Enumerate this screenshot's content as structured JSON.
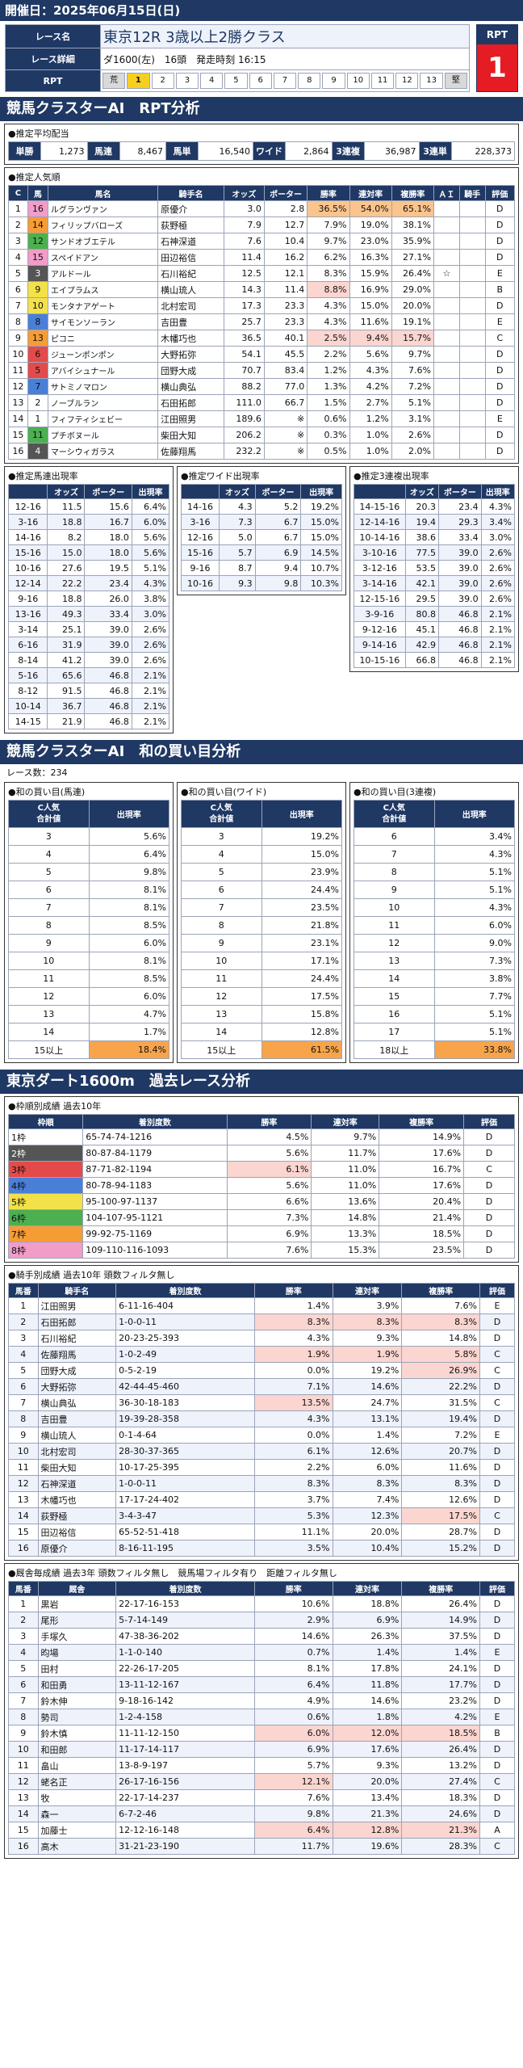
{
  "header": {
    "date_label": "開催日：2025年06月15日(日)",
    "race_label": "レース名",
    "race_name": "東京12R 3歳以上2勝クラス",
    "detail_label": "レース詳細",
    "detail_value": "ダ1600(左)　16頭　発走時刻 16:15",
    "rpt_label": "RPT",
    "rpt_head": "RPT",
    "rpt_value": "1",
    "rpt_scale": [
      "荒",
      "1",
      "2",
      "3",
      "4",
      "5",
      "6",
      "7",
      "8",
      "9",
      "10",
      "11",
      "12",
      "13",
      "堅"
    ]
  },
  "section1": {
    "title": "競馬クラスターAI　RPT分析",
    "payout_title": "●推定平均配当",
    "payouts": [
      [
        "単勝",
        "1,273"
      ],
      [
        "馬連",
        "8,467"
      ],
      [
        "馬単",
        "16,540"
      ],
      [
        "ワイド",
        "2,864"
      ],
      [
        "3連複",
        "36,987"
      ],
      [
        "3連単",
        "228,373"
      ]
    ],
    "popularity_title": "●推定人気順",
    "pop_headers": [
      "C",
      "馬",
      "馬名",
      "騎手名",
      "オッズ",
      "ポーター",
      "勝率",
      "連対率",
      "複勝率",
      "ＡＩ",
      "騎手",
      "評価"
    ],
    "pop_rows": [
      [
        "1",
        "16",
        "ルグランヴァン",
        "原優介",
        "3.0",
        "2.8",
        "36.5%",
        "54.0%",
        "65.1%",
        "",
        "",
        "D"
      ],
      [
        "2",
        "14",
        "フィリップバローズ",
        "荻野極",
        "7.9",
        "12.7",
        "7.9%",
        "19.0%",
        "38.1%",
        "",
        "",
        "D"
      ],
      [
        "3",
        "12",
        "サンドオブエテル",
        "石神深道",
        "7.6",
        "10.4",
        "9.7%",
        "23.0%",
        "35.9%",
        "",
        "",
        "D"
      ],
      [
        "4",
        "15",
        "スペイドアン",
        "田辺裕信",
        "11.4",
        "16.2",
        "6.2%",
        "16.3%",
        "27.1%",
        "",
        "",
        "D"
      ],
      [
        "5",
        "3",
        "アルドール",
        "石川裕紀",
        "12.5",
        "12.1",
        "8.3%",
        "15.9%",
        "26.4%",
        "☆",
        "",
        "E"
      ],
      [
        "6",
        "9",
        "エイプラムス",
        "横山琉人",
        "14.3",
        "11.4",
        "8.8%",
        "16.9%",
        "29.0%",
        "",
        "",
        "B"
      ],
      [
        "7",
        "10",
        "モンタナアゲート",
        "北村宏司",
        "17.3",
        "23.3",
        "4.3%",
        "15.0%",
        "20.0%",
        "",
        "",
        "D"
      ],
      [
        "8",
        "8",
        "サイモンソーラン",
        "吉田豊",
        "25.7",
        "23.3",
        "4.3%",
        "11.6%",
        "19.1%",
        "",
        "",
        "E"
      ],
      [
        "9",
        "13",
        "ピコニ",
        "木幡巧也",
        "36.5",
        "40.1",
        "2.5%",
        "9.4%",
        "15.7%",
        "",
        "",
        "C"
      ],
      [
        "10",
        "6",
        "ジューンポンポン",
        "大野拓弥",
        "54.1",
        "45.5",
        "2.2%",
        "5.6%",
        "9.7%",
        "",
        "",
        "D"
      ],
      [
        "11",
        "5",
        "アバイシュナール",
        "団野大成",
        "70.7",
        "83.4",
        "1.2%",
        "4.3%",
        "7.6%",
        "",
        "",
        "D"
      ],
      [
        "12",
        "7",
        "サトミノマロン",
        "横山典弘",
        "88.2",
        "77.0",
        "1.3%",
        "4.2%",
        "7.2%",
        "",
        "",
        "D"
      ],
      [
        "13",
        "2",
        "ノーブルラン",
        "石田拓郎",
        "111.0",
        "66.7",
        "1.5%",
        "2.7%",
        "5.1%",
        "",
        "",
        "D"
      ],
      [
        "14",
        "1",
        "フィフティシェビー",
        "江田照男",
        "189.6",
        "※",
        "0.6%",
        "1.2%",
        "3.1%",
        "",
        "",
        "E"
      ],
      [
        "15",
        "11",
        "プチボヌール",
        "柴田大知",
        "206.2",
        "※",
        "0.3%",
        "1.0%",
        "2.6%",
        "",
        "",
        "D"
      ],
      [
        "16",
        "4",
        "マーシウィガラス",
        "佐藤翔馬",
        "232.2",
        "※",
        "0.5%",
        "1.0%",
        "2.0%",
        "",
        "",
        "D"
      ]
    ],
    "umaren_title": "●推定馬連出現率",
    "wide_title": "●推定ワイド出現率",
    "sanren_title": "●推定3連複出現率",
    "combo_headers": [
      "",
      "オッズ",
      "ポーター",
      "出現率"
    ],
    "umaren": [
      [
        "12-16",
        "11.5",
        "15.6",
        "6.4%"
      ],
      [
        "3-16",
        "18.8",
        "16.7",
        "6.0%"
      ],
      [
        "14-16",
        "8.2",
        "18.0",
        "5.6%"
      ],
      [
        "15-16",
        "15.0",
        "18.0",
        "5.6%"
      ],
      [
        "10-16",
        "27.6",
        "19.5",
        "5.1%"
      ],
      [
        "12-14",
        "22.2",
        "23.4",
        "4.3%"
      ],
      [
        "9-16",
        "18.8",
        "26.0",
        "3.8%"
      ],
      [
        "13-16",
        "49.3",
        "33.4",
        "3.0%"
      ],
      [
        "3-14",
        "25.1",
        "39.0",
        "2.6%"
      ],
      [
        "6-16",
        "31.9",
        "39.0",
        "2.6%"
      ],
      [
        "8-14",
        "41.2",
        "39.0",
        "2.6%"
      ],
      [
        "5-16",
        "65.6",
        "46.8",
        "2.1%"
      ],
      [
        "8-12",
        "91.5",
        "46.8",
        "2.1%"
      ],
      [
        "10-14",
        "36.7",
        "46.8",
        "2.1%"
      ],
      [
        "14-15",
        "21.9",
        "46.8",
        "2.1%"
      ]
    ],
    "wide": [
      [
        "14-16",
        "4.3",
        "5.2",
        "19.2%"
      ],
      [
        "3-16",
        "7.3",
        "6.7",
        "15.0%"
      ],
      [
        "12-16",
        "5.0",
        "6.7",
        "15.0%"
      ],
      [
        "15-16",
        "5.7",
        "6.9",
        "14.5%"
      ],
      [
        "9-16",
        "8.7",
        "9.4",
        "10.7%"
      ],
      [
        "10-16",
        "9.3",
        "9.8",
        "10.3%"
      ]
    ],
    "sanren": [
      [
        "14-15-16",
        "20.3",
        "23.4",
        "4.3%"
      ],
      [
        "12-14-16",
        "19.4",
        "29.3",
        "3.4%"
      ],
      [
        "10-14-16",
        "38.6",
        "33.4",
        "3.0%"
      ],
      [
        "3-10-16",
        "77.5",
        "39.0",
        "2.6%"
      ],
      [
        "3-12-16",
        "53.5",
        "39.0",
        "2.6%"
      ],
      [
        "3-14-16",
        "42.1",
        "39.0",
        "2.6%"
      ],
      [
        "12-15-16",
        "29.5",
        "39.0",
        "2.6%"
      ],
      [
        "3-9-16",
        "80.8",
        "46.8",
        "2.1%"
      ],
      [
        "9-12-16",
        "45.1",
        "46.8",
        "2.1%"
      ],
      [
        "9-14-16",
        "42.9",
        "46.8",
        "2.1%"
      ],
      [
        "10-15-16",
        "66.8",
        "46.8",
        "2.1%"
      ]
    ]
  },
  "section2": {
    "title": "競馬クラスターAI　和の買い目分析",
    "subtitle": "レース数：234",
    "box_titles": [
      "●和の買い目(馬連)",
      "●和の買い目(ワイド)",
      "●和の買い目(3連複)"
    ],
    "head_a": "C人気\n合計値",
    "head_b": "出現率",
    "umaren": [
      [
        "3",
        "5.6%"
      ],
      [
        "4",
        "6.4%"
      ],
      [
        "5",
        "9.8%"
      ],
      [
        "6",
        "8.1%"
      ],
      [
        "7",
        "8.1%"
      ],
      [
        "8",
        "8.5%"
      ],
      [
        "9",
        "6.0%"
      ],
      [
        "10",
        "8.1%"
      ],
      [
        "11",
        "8.5%"
      ],
      [
        "12",
        "6.0%"
      ],
      [
        "13",
        "4.7%"
      ],
      [
        "14",
        "1.7%"
      ],
      [
        "15以上",
        "18.4%"
      ]
    ],
    "wide": [
      [
        "3",
        "19.2%"
      ],
      [
        "4",
        "15.0%"
      ],
      [
        "5",
        "23.9%"
      ],
      [
        "6",
        "24.4%"
      ],
      [
        "7",
        "23.5%"
      ],
      [
        "8",
        "21.8%"
      ],
      [
        "9",
        "23.1%"
      ],
      [
        "10",
        "17.1%"
      ],
      [
        "11",
        "24.4%"
      ],
      [
        "12",
        "17.5%"
      ],
      [
        "13",
        "15.8%"
      ],
      [
        "14",
        "12.8%"
      ],
      [
        "15以上",
        "61.5%"
      ]
    ],
    "sanren": [
      [
        "6",
        "3.4%"
      ],
      [
        "7",
        "4.3%"
      ],
      [
        "8",
        "5.1%"
      ],
      [
        "9",
        "5.1%"
      ],
      [
        "10",
        "4.3%"
      ],
      [
        "11",
        "6.0%"
      ],
      [
        "12",
        "9.0%"
      ],
      [
        "13",
        "7.3%"
      ],
      [
        "14",
        "3.8%"
      ],
      [
        "15",
        "7.7%"
      ],
      [
        "16",
        "5.1%"
      ],
      [
        "17",
        "5.1%"
      ],
      [
        "18以上",
        "33.8%"
      ]
    ]
  },
  "section3": {
    "title": "東京ダート1600m　過去レース分析",
    "waku_title": "●枠順別成績 過去10年",
    "waku_headers": [
      "枠順",
      "着別度数",
      "勝率",
      "連対率",
      "複勝率",
      "評価"
    ],
    "waku": [
      [
        "1枠",
        "65-74-74-1216",
        "4.5%",
        "9.7%",
        "14.9%",
        "D"
      ],
      [
        "2枠",
        "80-87-84-1179",
        "5.6%",
        "11.7%",
        "17.6%",
        "D"
      ],
      [
        "3枠",
        "87-71-82-1194",
        "6.1%",
        "11.0%",
        "16.7%",
        "C"
      ],
      [
        "4枠",
        "80-78-94-1183",
        "5.6%",
        "11.0%",
        "17.6%",
        "D"
      ],
      [
        "5枠",
        "95-100-97-1137",
        "6.6%",
        "13.6%",
        "20.4%",
        "D"
      ],
      [
        "6枠",
        "104-107-95-1121",
        "7.3%",
        "14.8%",
        "21.4%",
        "D"
      ],
      [
        "7枠",
        "99-92-75-1169",
        "6.9%",
        "13.3%",
        "18.5%",
        "D"
      ],
      [
        "8枠",
        "109-110-116-1093",
        "7.6%",
        "15.3%",
        "23.5%",
        "D"
      ]
    ],
    "jockey_title": "●騎手別成績 過去10年 頭数フィルタ無し",
    "jockey_headers": [
      "馬番",
      "騎手名",
      "着別度数",
      "勝率",
      "連対率",
      "複勝率",
      "評価"
    ],
    "jockeys": [
      [
        "1",
        "江田照男",
        "6-11-16-404",
        "1.4%",
        "3.9%",
        "7.6%",
        "E"
      ],
      [
        "2",
        "石田拓郎",
        "1-0-0-11",
        "8.3%",
        "8.3%",
        "8.3%",
        "D"
      ],
      [
        "3",
        "石川裕紀",
        "20-23-25-393",
        "4.3%",
        "9.3%",
        "14.8%",
        "D"
      ],
      [
        "4",
        "佐藤翔馬",
        "1-0-2-49",
        "1.9%",
        "1.9%",
        "5.8%",
        "C"
      ],
      [
        "5",
        "団野大成",
        "0-5-2-19",
        "0.0%",
        "19.2%",
        "26.9%",
        "C"
      ],
      [
        "6",
        "大野拓弥",
        "42-44-45-460",
        "7.1%",
        "14.6%",
        "22.2%",
        "D"
      ],
      [
        "7",
        "横山典弘",
        "36-30-18-183",
        "13.5%",
        "24.7%",
        "31.5%",
        "C"
      ],
      [
        "8",
        "吉田豊",
        "19-39-28-358",
        "4.3%",
        "13.1%",
        "19.4%",
        "D"
      ],
      [
        "9",
        "横山琉人",
        "0-1-4-64",
        "0.0%",
        "1.4%",
        "7.2%",
        "E"
      ],
      [
        "10",
        "北村宏司",
        "28-30-37-365",
        "6.1%",
        "12.6%",
        "20.7%",
        "D"
      ],
      [
        "11",
        "柴田大知",
        "10-17-25-395",
        "2.2%",
        "6.0%",
        "11.6%",
        "D"
      ],
      [
        "12",
        "石神深道",
        "1-0-0-11",
        "8.3%",
        "8.3%",
        "8.3%",
        "D"
      ],
      [
        "13",
        "木幡巧也",
        "17-17-24-402",
        "3.7%",
        "7.4%",
        "12.6%",
        "D"
      ],
      [
        "14",
        "荻野極",
        "3-4-3-47",
        "5.3%",
        "12.3%",
        "17.5%",
        "C"
      ],
      [
        "15",
        "田辺裕信",
        "65-52-51-418",
        "11.1%",
        "20.0%",
        "28.7%",
        "D"
      ],
      [
        "16",
        "原優介",
        "8-16-11-195",
        "3.5%",
        "10.4%",
        "15.2%",
        "D"
      ]
    ],
    "breeder_title": "●厩舎毎成績 過去3年 頭数フィルタ無し　競馬場フィルタ有り　距離フィルタ無し",
    "breeder_headers": [
      "馬番",
      "厩舎",
      "着別度数",
      "勝率",
      "連対率",
      "複勝率",
      "評価"
    ],
    "breeders": [
      [
        "1",
        "黒岩",
        "22-17-16-153",
        "10.6%",
        "18.8%",
        "26.4%",
        "D"
      ],
      [
        "2",
        "尾形",
        "5-7-14-149",
        "2.9%",
        "6.9%",
        "14.9%",
        "D"
      ],
      [
        "3",
        "手塚久",
        "47-38-36-202",
        "14.6%",
        "26.3%",
        "37.5%",
        "D"
      ],
      [
        "4",
        "昀場",
        "1-1-0-140",
        "0.7%",
        "1.4%",
        "1.4%",
        "E"
      ],
      [
        "5",
        "田村",
        "22-26-17-205",
        "8.1%",
        "17.8%",
        "24.1%",
        "D"
      ],
      [
        "6",
        "和田勇",
        "13-11-12-167",
        "6.4%",
        "11.8%",
        "17.7%",
        "D"
      ],
      [
        "7",
        "鈴木伸",
        "9-18-16-142",
        "4.9%",
        "14.6%",
        "23.2%",
        "D"
      ],
      [
        "8",
        "勢司",
        "1-2-4-158",
        "0.6%",
        "1.8%",
        "4.2%",
        "E"
      ],
      [
        "9",
        "鈴木慎",
        "11-11-12-150",
        "6.0%",
        "12.0%",
        "18.5%",
        "B"
      ],
      [
        "10",
        "和田郎",
        "11-17-14-117",
        "6.9%",
        "17.6%",
        "26.4%",
        "D"
      ],
      [
        "11",
        "畠山",
        "13-8-9-197",
        "5.7%",
        "9.3%",
        "13.2%",
        "D"
      ],
      [
        "12",
        "蛯名正",
        "26-17-16-156",
        "12.1%",
        "20.0%",
        "27.4%",
        "C"
      ],
      [
        "13",
        "牧",
        "22-17-14-237",
        "7.6%",
        "13.4%",
        "18.3%",
        "D"
      ],
      [
        "14",
        "森一",
        "6-7-2-46",
        "9.8%",
        "21.3%",
        "24.6%",
        "D"
      ],
      [
        "15",
        "加藤士",
        "12-12-16-148",
        "6.4%",
        "12.8%",
        "21.3%",
        "A"
      ],
      [
        "16",
        "高木",
        "31-21-23-190",
        "11.7%",
        "19.6%",
        "28.3%",
        "C"
      ]
    ]
  },
  "colors": {
    "navy": "#1f3864",
    "waku": [
      "#ffffff",
      "#555555",
      "#e34b4b",
      "#4a7fd8",
      "#f3e14a",
      "#4caf50",
      "#f59c35",
      "#f29cc8"
    ]
  }
}
